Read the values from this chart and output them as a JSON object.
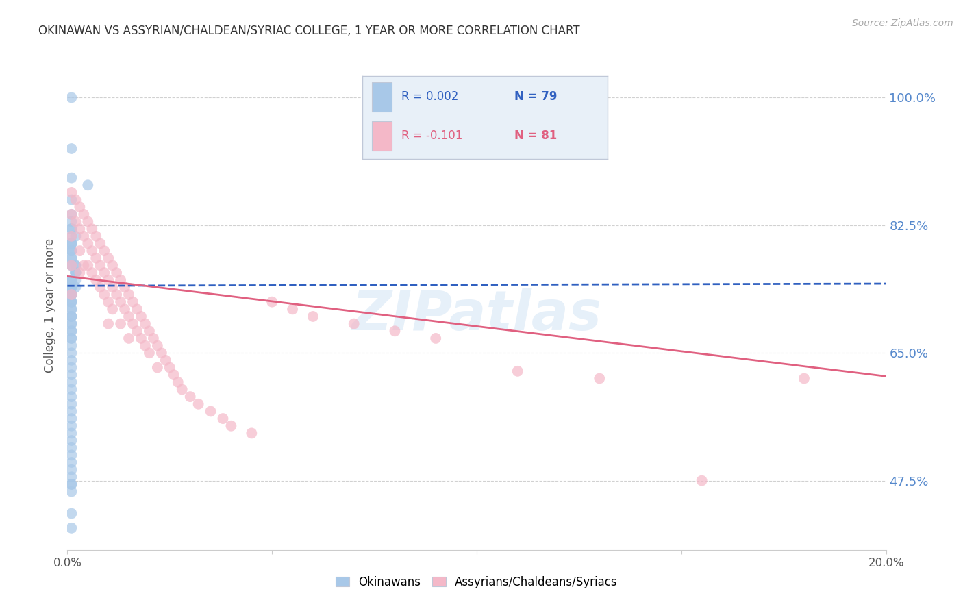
{
  "title": "OKINAWAN VS ASSYRIAN/CHALDEAN/SYRIAC COLLEGE, 1 YEAR OR MORE CORRELATION CHART",
  "source": "Source: ZipAtlas.com",
  "ylabel": "College, 1 year or more",
  "right_ytick_labels": [
    "47.5%",
    "65.0%",
    "82.5%",
    "100.0%"
  ],
  "right_ytick_values": [
    0.475,
    0.65,
    0.825,
    1.0
  ],
  "xlim": [
    0.0,
    0.2
  ],
  "ylim": [
    0.38,
    1.05
  ],
  "blue_color": "#a8c8e8",
  "pink_color": "#f4b8c8",
  "trend_blue_color": "#3060c0",
  "trend_pink_color": "#e06080",
  "right_label_color": "#5588cc",
  "background_color": "#ffffff",
  "watermark": "ZIPatlas",
  "legend_box_color": "#e8f0f8",
  "legend_box_border": "#c0c8d8",
  "blue_x": [
    0.001,
    0.001,
    0.001,
    0.005,
    0.001,
    0.001,
    0.001,
    0.001,
    0.001,
    0.001,
    0.002,
    0.001,
    0.001,
    0.001,
    0.001,
    0.001,
    0.001,
    0.001,
    0.001,
    0.001,
    0.001,
    0.002,
    0.002,
    0.002,
    0.002,
    0.002,
    0.002,
    0.002,
    0.002,
    0.001,
    0.001,
    0.001,
    0.001,
    0.001,
    0.002,
    0.001,
    0.001,
    0.001,
    0.001,
    0.001,
    0.001,
    0.001,
    0.001,
    0.001,
    0.001,
    0.001,
    0.001,
    0.001,
    0.001,
    0.001,
    0.001,
    0.001,
    0.001,
    0.001,
    0.001,
    0.001,
    0.001,
    0.001,
    0.001,
    0.001,
    0.001,
    0.001,
    0.001,
    0.001,
    0.001,
    0.001,
    0.001,
    0.001,
    0.001,
    0.001,
    0.001,
    0.001,
    0.001,
    0.001,
    0.001,
    0.001,
    0.001,
    0.001,
    0.001
  ],
  "blue_y": [
    1.0,
    0.93,
    0.89,
    0.88,
    0.86,
    0.84,
    0.83,
    0.82,
    0.82,
    0.81,
    0.81,
    0.8,
    0.8,
    0.8,
    0.79,
    0.79,
    0.79,
    0.78,
    0.78,
    0.77,
    0.77,
    0.77,
    0.77,
    0.76,
    0.76,
    0.76,
    0.76,
    0.76,
    0.75,
    0.75,
    0.75,
    0.75,
    0.75,
    0.74,
    0.74,
    0.74,
    0.74,
    0.73,
    0.73,
    0.73,
    0.73,
    0.72,
    0.72,
    0.72,
    0.71,
    0.71,
    0.7,
    0.7,
    0.7,
    0.69,
    0.69,
    0.68,
    0.68,
    0.67,
    0.67,
    0.66,
    0.65,
    0.64,
    0.63,
    0.62,
    0.61,
    0.6,
    0.59,
    0.58,
    0.57,
    0.56,
    0.55,
    0.54,
    0.53,
    0.52,
    0.51,
    0.5,
    0.49,
    0.48,
    0.47,
    0.47,
    0.46,
    0.43,
    0.41
  ],
  "pink_x": [
    0.001,
    0.001,
    0.001,
    0.001,
    0.001,
    0.002,
    0.002,
    0.003,
    0.003,
    0.003,
    0.003,
    0.004,
    0.004,
    0.004,
    0.005,
    0.005,
    0.005,
    0.006,
    0.006,
    0.006,
    0.007,
    0.007,
    0.007,
    0.008,
    0.008,
    0.008,
    0.009,
    0.009,
    0.009,
    0.01,
    0.01,
    0.01,
    0.01,
    0.011,
    0.011,
    0.011,
    0.012,
    0.012,
    0.013,
    0.013,
    0.013,
    0.014,
    0.014,
    0.015,
    0.015,
    0.015,
    0.016,
    0.016,
    0.017,
    0.017,
    0.018,
    0.018,
    0.019,
    0.019,
    0.02,
    0.02,
    0.021,
    0.022,
    0.022,
    0.023,
    0.024,
    0.025,
    0.026,
    0.027,
    0.028,
    0.03,
    0.032,
    0.035,
    0.038,
    0.04,
    0.045,
    0.05,
    0.055,
    0.06,
    0.07,
    0.08,
    0.09,
    0.11,
    0.13,
    0.155,
    0.18
  ],
  "pink_y": [
    0.87,
    0.84,
    0.81,
    0.77,
    0.73,
    0.86,
    0.83,
    0.85,
    0.82,
    0.79,
    0.76,
    0.84,
    0.81,
    0.77,
    0.83,
    0.8,
    0.77,
    0.82,
    0.79,
    0.76,
    0.81,
    0.78,
    0.75,
    0.8,
    0.77,
    0.74,
    0.79,
    0.76,
    0.73,
    0.78,
    0.75,
    0.72,
    0.69,
    0.77,
    0.74,
    0.71,
    0.76,
    0.73,
    0.75,
    0.72,
    0.69,
    0.74,
    0.71,
    0.73,
    0.7,
    0.67,
    0.72,
    0.69,
    0.71,
    0.68,
    0.7,
    0.67,
    0.69,
    0.66,
    0.68,
    0.65,
    0.67,
    0.66,
    0.63,
    0.65,
    0.64,
    0.63,
    0.62,
    0.61,
    0.6,
    0.59,
    0.58,
    0.57,
    0.56,
    0.55,
    0.54,
    0.72,
    0.71,
    0.7,
    0.69,
    0.68,
    0.67,
    0.625,
    0.615,
    0.475,
    0.615
  ],
  "blue_trend_x0": 0.0,
  "blue_trend_x1": 0.2,
  "blue_trend_y0": 0.742,
  "blue_trend_y1": 0.745,
  "pink_trend_x0": 0.0,
  "pink_trend_x1": 0.2,
  "pink_trend_y0": 0.755,
  "pink_trend_y1": 0.618
}
